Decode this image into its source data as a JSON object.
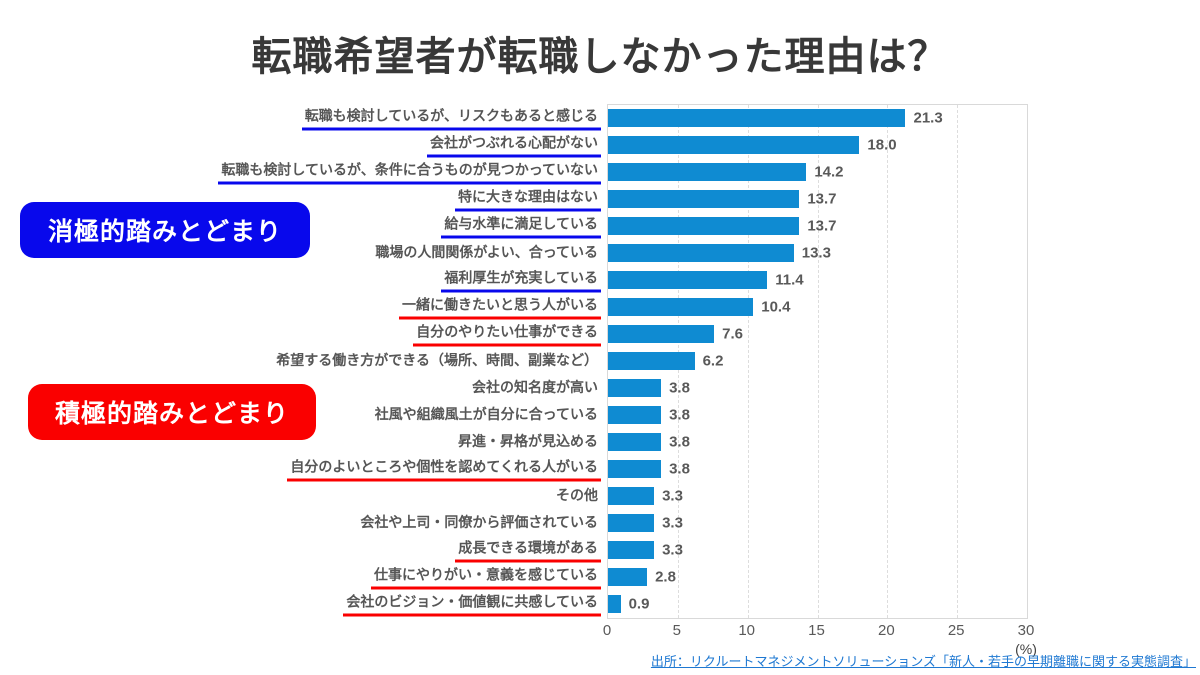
{
  "title": "転職希望者が転職しなかった理由は？",
  "annotations": {
    "negative_label": "消極的踏みとどまり",
    "positive_label": "積極的踏みとどまり"
  },
  "colors": {
    "bar": "#0F8BD2",
    "negative_blue": "#0808EC",
    "positive_red": "#FA0000",
    "link_blue": "#1E78D2",
    "grid": "#D9D9D9"
  },
  "chart_data": {
    "type": "bar",
    "orientation": "horizontal",
    "title": "転職希望者が転職しなかった理由は？",
    "xlabel": "(%)",
    "xlim": [
      0,
      30
    ],
    "xticks": [
      0,
      5,
      10,
      15,
      20,
      25,
      30
    ],
    "grid": "dashed-vertical",
    "categories": [
      "転職も検討しているが、リスクもあると感じる",
      "会社がつぶれる心配がない",
      "転職も検討しているが、条件に合うものが見つかっていない",
      "特に大きな理由はない",
      "給与水準に満足している",
      "職場の人間関係がよい、合っている",
      "福利厚生が充実している",
      "一緒に働きたいと思う人がいる",
      "自分のやりたい仕事ができる",
      "希望する働き方ができる（場所、時間、副業など）",
      "会社の知名度が高い",
      "社風や組織風土が自分に合っている",
      "昇進・昇格が見込める",
      "自分のよいところや個性を認めてくれる人がいる",
      "その他",
      "会社や上司・同僚から評価されている",
      "成長できる環境がある",
      "仕事にやりがい・意義を感じている",
      "会社のビジョン・価値観に共感している"
    ],
    "values": [
      21.3,
      18.0,
      14.2,
      13.7,
      13.7,
      13.3,
      11.4,
      10.4,
      7.6,
      6.2,
      3.8,
      3.8,
      3.8,
      3.8,
      3.3,
      3.3,
      3.3,
      2.8,
      0.9
    ],
    "underlines": [
      "blue",
      "blue",
      "blue",
      "blue",
      "blue",
      "none",
      "blue",
      "red",
      "red",
      "none",
      "none",
      "none",
      "none",
      "red",
      "none",
      "none",
      "red",
      "red",
      "red"
    ]
  },
  "source": {
    "text": "出所：リクルートマネジメントソリューションズ「新人・若手の早期離職に関する実態調査」"
  }
}
